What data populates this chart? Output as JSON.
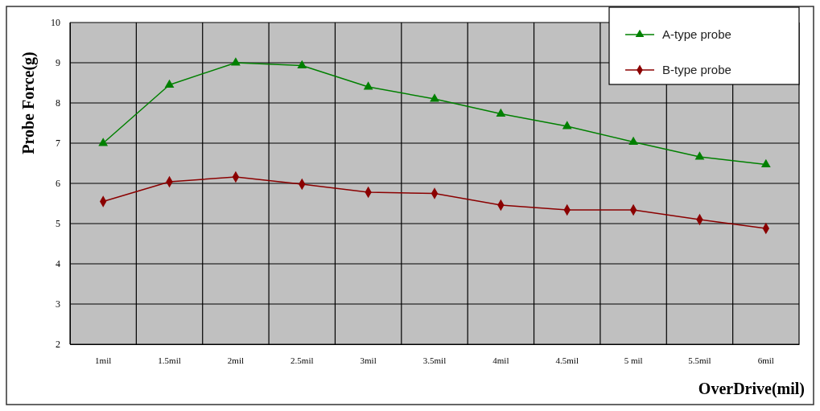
{
  "chart_data": {
    "type": "line",
    "xlabel": "OverDrive(mil)",
    "ylabel": "Probe Force(g)",
    "categories": [
      "1mil",
      "1.5mil",
      "2mil",
      "2.5mil",
      "3mil",
      "3.5mil",
      "4mil",
      "4.5mil",
      "5 mil",
      "5.5mil",
      "6mil"
    ],
    "series": [
      {
        "name": "A-type probe",
        "color": "#008000",
        "marker": "triangle",
        "values": [
          7.0,
          8.45,
          9.0,
          8.93,
          8.4,
          8.1,
          7.73,
          7.42,
          7.03,
          6.66,
          6.47
        ]
      },
      {
        "name": "B-type probe",
        "color": "#8b0000",
        "marker": "diamond",
        "values": [
          5.55,
          6.04,
          6.16,
          5.98,
          5.78,
          5.75,
          5.46,
          5.34,
          5.34,
          5.1,
          4.88
        ]
      }
    ],
    "ylim": [
      2,
      10
    ],
    "yticks": [
      2,
      3,
      4,
      5,
      6,
      7,
      8,
      9,
      10
    ],
    "grid": true,
    "legend": "top right"
  }
}
